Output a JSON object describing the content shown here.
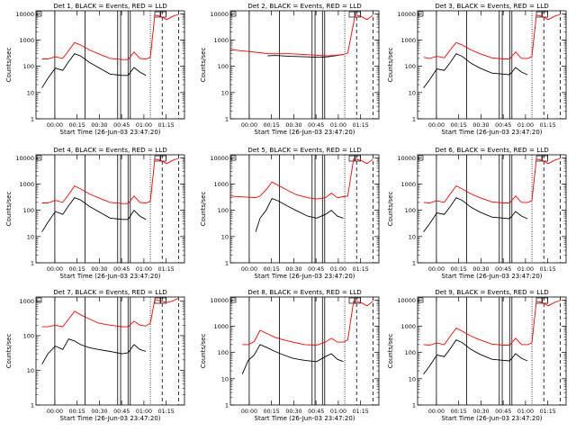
{
  "figure": {
    "ylabel": "Counts/sec",
    "xlabel": "Start Time (26-Jun-03 23:47:20)",
    "line_colors": {
      "events": "#000000",
      "lld": "#ff0000"
    },
    "x_ticks": [
      {
        "t": 12.67,
        "label": "00:00"
      },
      {
        "t": 27.67,
        "label": "00:15"
      },
      {
        "t": 42.67,
        "label": "00:30"
      },
      {
        "t": 57.67,
        "label": "00:45"
      },
      {
        "t": 72.67,
        "label": "01:00"
      },
      {
        "t": 87.67,
        "label": "01:15"
      }
    ],
    "y_ticks": [
      {
        "v": 1,
        "label": "1"
      },
      {
        "v": 10,
        "label": "10"
      },
      {
        "v": 100,
        "label": "100"
      },
      {
        "v": 1000,
        "label": "1000"
      },
      {
        "v": 10000,
        "label": "10000"
      }
    ]
  },
  "chart_data": [
    {
      "type": "line",
      "title": "Det 1, BLACK = Events, RED = LLD",
      "xlim": [
        0,
        100
      ],
      "ylim": [
        1,
        13000
      ],
      "yscale": "log",
      "series": [
        {
          "name": "Events",
          "x": [
            4,
            8,
            13,
            18,
            22,
            26,
            30,
            36,
            42,
            50,
            58,
            62,
            66,
            70,
            74
          ],
          "y": [
            15,
            35,
            85,
            70,
            150,
            300,
            250,
            140,
            90,
            50,
            45,
            45,
            90,
            60,
            45
          ]
        },
        {
          "name": "LLD",
          "x": [
            4,
            8,
            13,
            18,
            22,
            26,
            30,
            36,
            42,
            50,
            58,
            62,
            66,
            70,
            74,
            77,
            80,
            84,
            88,
            92,
            96
          ],
          "y": [
            190,
            190,
            230,
            200,
            400,
            800,
            650,
            420,
            300,
            200,
            180,
            180,
            350,
            200,
            190,
            220,
            9000,
            8000,
            6000,
            8000,
            9500
          ]
        }
      ]
    },
    {
      "type": "line",
      "title": "Det 2, BLACK = Events, RED = LLD",
      "xlim": [
        0,
        100
      ],
      "ylim": [
        1,
        13000
      ],
      "yscale": "log",
      "series": [
        {
          "name": "Events",
          "x": [
            25,
            30,
            40,
            50,
            60,
            66,
            70,
            76
          ],
          "y": [
            250,
            260,
            240,
            230,
            220,
            230,
            250,
            280
          ]
        },
        {
          "name": "LLD",
          "x": [
            0,
            10,
            20,
            25,
            30,
            40,
            50,
            60,
            66,
            70,
            76,
            79,
            84,
            88,
            92,
            96
          ],
          "y": [
            430,
            380,
            330,
            300,
            300,
            300,
            280,
            260,
            250,
            260,
            280,
            320,
            9000,
            8000,
            6000,
            9000
          ]
        }
      ]
    },
    {
      "type": "line",
      "title": "Det 3, BLACK = Events, RED = LLD",
      "xlim": [
        0,
        100
      ],
      "ylim": [
        1,
        13000
      ],
      "yscale": "log",
      "series": [
        {
          "name": "Events",
          "x": [
            4,
            8,
            13,
            18,
            22,
            26,
            30,
            36,
            42,
            50,
            58,
            62,
            66,
            70,
            74
          ],
          "y": [
            15,
            30,
            80,
            70,
            140,
            300,
            240,
            130,
            85,
            55,
            50,
            48,
            90,
            60,
            48
          ]
        },
        {
          "name": "LLD",
          "x": [
            4,
            8,
            13,
            18,
            22,
            26,
            30,
            36,
            42,
            50,
            58,
            62,
            66,
            70,
            74,
            77,
            80,
            84,
            88,
            92,
            96
          ],
          "y": [
            220,
            200,
            240,
            210,
            420,
            800,
            650,
            420,
            300,
            210,
            190,
            190,
            350,
            200,
            200,
            230,
            9000,
            8000,
            6000,
            8000,
            9500
          ]
        }
      ]
    },
    {
      "type": "line",
      "title": "Det 4, BLACK = Events, RED = LLD",
      "xlim": [
        0,
        100
      ],
      "ylim": [
        1,
        13000
      ],
      "yscale": "log",
      "series": [
        {
          "name": "Events",
          "x": [
            4,
            8,
            13,
            18,
            22,
            26,
            30,
            36,
            42,
            50,
            58,
            62,
            66,
            70,
            74
          ],
          "y": [
            15,
            35,
            90,
            70,
            150,
            300,
            250,
            140,
            90,
            50,
            45,
            45,
            100,
            60,
            45
          ]
        },
        {
          "name": "LLD",
          "x": [
            4,
            8,
            13,
            18,
            22,
            26,
            30,
            36,
            42,
            50,
            58,
            62,
            66,
            70,
            74,
            77,
            80,
            84,
            88,
            92,
            96
          ],
          "y": [
            190,
            190,
            240,
            200,
            400,
            850,
            650,
            420,
            300,
            200,
            180,
            180,
            350,
            200,
            190,
            220,
            9000,
            8000,
            6000,
            8000,
            9500
          ]
        }
      ]
    },
    {
      "type": "line",
      "title": "Det 5, BLACK = Events, RED = LLD",
      "xlim": [
        0,
        100
      ],
      "ylim": [
        1,
        13000
      ],
      "yscale": "log",
      "series": [
        {
          "name": "Events",
          "x": [
            17,
            20,
            24,
            28,
            32,
            38,
            44,
            52,
            58,
            64,
            68,
            72,
            76
          ],
          "y": [
            15,
            50,
            100,
            280,
            230,
            150,
            100,
            60,
            50,
            70,
            100,
            60,
            50
          ]
        },
        {
          "name": "LLD",
          "x": [
            0,
            10,
            17,
            20,
            24,
            28,
            32,
            38,
            44,
            52,
            58,
            64,
            68,
            72,
            76,
            79,
            83,
            88,
            92,
            96
          ],
          "y": [
            350,
            320,
            300,
            350,
            600,
            1200,
            900,
            600,
            400,
            300,
            270,
            300,
            450,
            300,
            330,
            350,
            9000,
            8000,
            6000,
            9000
          ]
        }
      ]
    },
    {
      "type": "line",
      "title": "Det 6, BLACK = Events, RED = LLD",
      "xlim": [
        0,
        100
      ],
      "ylim": [
        1,
        13000
      ],
      "yscale": "log",
      "series": [
        {
          "name": "Events",
          "x": [
            4,
            8,
            13,
            18,
            22,
            26,
            30,
            36,
            42,
            50,
            58,
            62,
            66,
            70,
            74
          ],
          "y": [
            15,
            30,
            80,
            70,
            140,
            300,
            240,
            130,
            85,
            55,
            50,
            48,
            90,
            60,
            48
          ]
        },
        {
          "name": "LLD",
          "x": [
            4,
            8,
            13,
            18,
            22,
            26,
            30,
            36,
            42,
            50,
            58,
            62,
            66,
            70,
            74,
            77,
            80,
            84,
            88,
            92,
            96
          ],
          "y": [
            200,
            190,
            230,
            200,
            420,
            850,
            650,
            420,
            300,
            210,
            190,
            190,
            350,
            200,
            200,
            230,
            9000,
            8000,
            6000,
            8000,
            9500
          ]
        }
      ]
    },
    {
      "type": "line",
      "title": "Det 7, BLACK = Events, RED = LLD",
      "xlim": [
        0,
        100
      ],
      "ylim": [
        1,
        1300
      ],
      "yscale": "log",
      "series": [
        {
          "name": "Events",
          "x": [
            4,
            8,
            13,
            18,
            22,
            26,
            30,
            36,
            42,
            50,
            58,
            62,
            66,
            70,
            74
          ],
          "y": [
            15,
            30,
            50,
            40,
            80,
            70,
            55,
            45,
            40,
            35,
            30,
            32,
            55,
            40,
            35
          ]
        },
        {
          "name": "LLD",
          "x": [
            4,
            8,
            13,
            18,
            22,
            26,
            30,
            36,
            42,
            50,
            58,
            62,
            66,
            70,
            74,
            77,
            80,
            84,
            88,
            92,
            96
          ],
          "y": [
            180,
            180,
            200,
            180,
            300,
            500,
            400,
            300,
            230,
            200,
            180,
            180,
            260,
            200,
            190,
            230,
            1100,
            1000,
            900,
            1000,
            1200
          ]
        }
      ]
    },
    {
      "type": "line",
      "title": "Det 8, BLACK = Events, RED = LLD",
      "xlim": [
        0,
        100
      ],
      "ylim": [
        1,
        13000
      ],
      "yscale": "log",
      "series": [
        {
          "name": "Events",
          "x": [
            8,
            12,
            16,
            20,
            24,
            30,
            36,
            42,
            50,
            58,
            64,
            68,
            72,
            76
          ],
          "y": [
            15,
            50,
            80,
            200,
            160,
            110,
            80,
            60,
            50,
            45,
            70,
            90,
            55,
            45
          ]
        },
        {
          "name": "LLD",
          "x": [
            8,
            12,
            16,
            20,
            24,
            30,
            36,
            42,
            50,
            58,
            64,
            68,
            72,
            76,
            79,
            83,
            88,
            92,
            96
          ],
          "y": [
            200,
            200,
            260,
            700,
            550,
            380,
            300,
            250,
            200,
            190,
            250,
            350,
            250,
            250,
            300,
            9000,
            8000,
            6000,
            9000
          ]
        }
      ]
    },
    {
      "type": "line",
      "title": "Det 9, BLACK = Events, RED = LLD",
      "xlim": [
        0,
        100
      ],
      "ylim": [
        1,
        13000
      ],
      "yscale": "log",
      "series": [
        {
          "name": "Events",
          "x": [
            4,
            8,
            13,
            18,
            22,
            26,
            30,
            36,
            42,
            50,
            58,
            62,
            66,
            70,
            74
          ],
          "y": [
            15,
            30,
            80,
            70,
            140,
            300,
            240,
            130,
            85,
            55,
            50,
            48,
            90,
            60,
            48
          ]
        },
        {
          "name": "LLD",
          "x": [
            4,
            8,
            13,
            18,
            22,
            26,
            30,
            36,
            42,
            50,
            58,
            62,
            66,
            70,
            74,
            77,
            80,
            84,
            88,
            92,
            96
          ],
          "y": [
            200,
            190,
            230,
            200,
            420,
            850,
            650,
            420,
            300,
            210,
            190,
            190,
            350,
            200,
            200,
            230,
            9000,
            8000,
            6000,
            8000,
            9500
          ]
        }
      ]
    }
  ]
}
